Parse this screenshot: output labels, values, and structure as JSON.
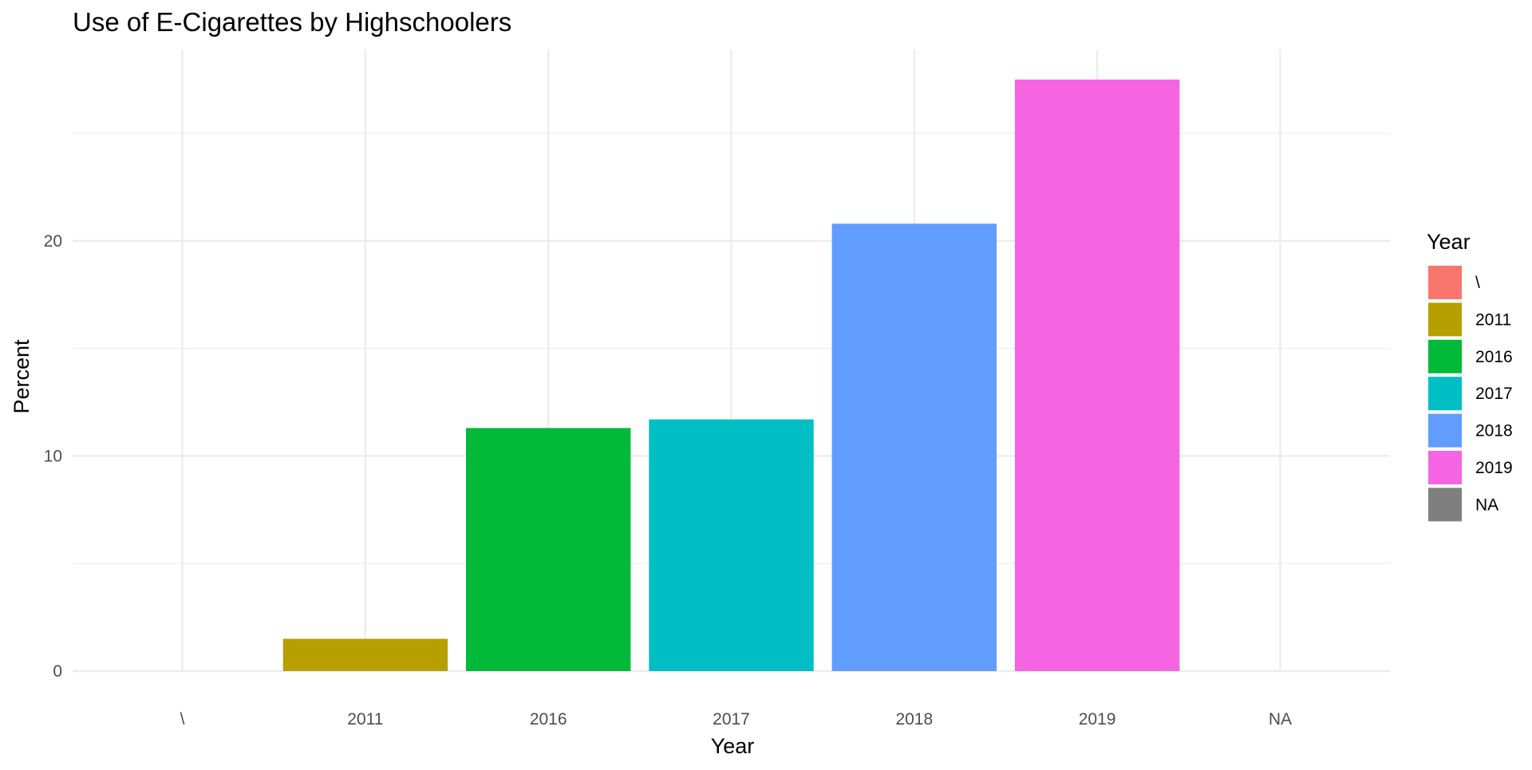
{
  "chart_data": {
    "type": "bar",
    "title": "Use of E-Cigarettes by Highschoolers",
    "xlabel": "Year",
    "ylabel": "Percent",
    "categories": [
      "\\",
      "2011",
      "2016",
      "2017",
      "2018",
      "2019",
      "NA"
    ],
    "values": [
      0,
      1.5,
      11.3,
      11.7,
      20.8,
      27.5,
      0
    ],
    "colors": [
      "#F8766D",
      "#B79F00",
      "#00BA38",
      "#00BFC4",
      "#619CFF",
      "#F564E3",
      "#7F7F7F"
    ],
    "ylim": [
      0,
      28.9
    ],
    "yticks": [
      0,
      10,
      20
    ],
    "grid": true,
    "legend": {
      "title": "Year",
      "position": "right",
      "entries": [
        "\\",
        "2011",
        "2016",
        "2017",
        "2018",
        "2019",
        "NA"
      ]
    }
  }
}
